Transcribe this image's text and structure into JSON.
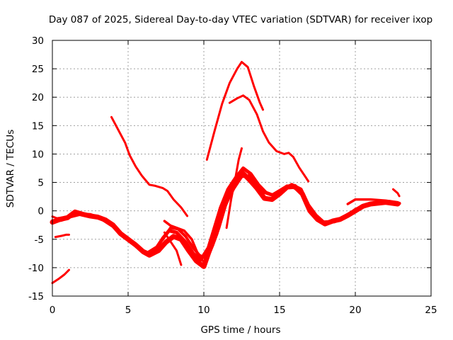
{
  "chart_data": {
    "type": "scatter",
    "title": "Day 087 of 2025, Sidereal Day-to-day VTEC variation (SDTVAR) for receiver ixop",
    "xlabel": "GPS time / hours",
    "ylabel": "SDTVAR / TECUs",
    "xlim": [
      0,
      25
    ],
    "ylim": [
      -15,
      30
    ],
    "xticks": [
      0,
      5,
      10,
      15,
      20,
      25
    ],
    "yticks": [
      -15,
      -10,
      -5,
      0,
      5,
      10,
      15,
      20,
      25,
      30
    ],
    "x_tick_labels": [
      "0",
      "5",
      "10",
      "15",
      "20",
      "25"
    ],
    "y_tick_labels": [
      "-15",
      "-10",
      "-5",
      "0",
      "5",
      "10",
      "15",
      "20",
      "25",
      "30"
    ],
    "grid": true,
    "color": "#ff0000",
    "series": [
      {
        "name": "arc-a",
        "points": [
          [
            0,
            -2
          ],
          [
            0.5,
            -1.5
          ],
          [
            1,
            -1.2
          ],
          [
            1.5,
            -0.2
          ],
          [
            2,
            -0.6
          ],
          [
            2.5,
            -0.9
          ],
          [
            3,
            -1.1
          ],
          [
            3.5,
            -1.6
          ],
          [
            4,
            -2.5
          ],
          [
            4.5,
            -4
          ],
          [
            5,
            -5
          ],
          [
            5.5,
            -6
          ],
          [
            6,
            -7.2
          ],
          [
            6.4,
            -7.8
          ],
          [
            7,
            -7
          ],
          [
            7.5,
            -5.5
          ],
          [
            8,
            -4.5
          ],
          [
            8.5,
            -5
          ],
          [
            9,
            -7
          ],
          [
            9.5,
            -8.8
          ],
          [
            10,
            -9.8
          ],
          [
            10.3,
            -7.5
          ],
          [
            10.8,
            -4
          ],
          [
            11.2,
            0
          ],
          [
            11.7,
            3
          ],
          [
            12,
            5
          ],
          [
            12.5,
            6.8
          ],
          [
            13,
            5.5
          ],
          [
            13.5,
            4
          ],
          [
            14,
            2.2
          ],
          [
            14.5,
            2
          ],
          [
            15,
            3
          ],
          [
            15.5,
            4.2
          ],
          [
            16,
            4.3
          ],
          [
            16.5,
            3
          ],
          [
            17,
            0
          ],
          [
            17.5,
            -1.5
          ],
          [
            18,
            -2.3
          ],
          [
            18.5,
            -1.8
          ],
          [
            19,
            -1.5
          ],
          [
            19.5,
            -0.8
          ],
          [
            20,
            0
          ],
          [
            20.5,
            0.8
          ],
          [
            21,
            1.2
          ],
          [
            22,
            1.5
          ],
          [
            22.8,
            1.2
          ]
        ],
        "width": 7
      },
      {
        "name": "arc-b",
        "points": [
          [
            0,
            -1.8
          ],
          [
            0.6,
            -1.6
          ],
          [
            1.2,
            -1
          ],
          [
            1.8,
            -0.6
          ],
          [
            2.5,
            -0.7
          ],
          [
            3.2,
            -1.3
          ],
          [
            4,
            -2.7
          ],
          [
            4.6,
            -4.3
          ],
          [
            5.2,
            -5.5
          ],
          [
            5.8,
            -6.8
          ],
          [
            6.3,
            -7.4
          ],
          [
            6.9,
            -6.4
          ],
          [
            7.3,
            -4.8
          ],
          [
            7.7,
            -3.5
          ],
          [
            8.2,
            -3.8
          ],
          [
            8.8,
            -5.5
          ],
          [
            9.3,
            -7.5
          ],
          [
            9.8,
            -8.6
          ],
          [
            10.3,
            -6.5
          ],
          [
            10.7,
            -3
          ],
          [
            11.1,
            0.5
          ],
          [
            11.6,
            3.8
          ],
          [
            12.1,
            5.8
          ],
          [
            12.6,
            7.5
          ],
          [
            13.1,
            6.5
          ],
          [
            13.6,
            4.6
          ],
          [
            14.1,
            3.2
          ],
          [
            14.7,
            2.6
          ],
          [
            15.3,
            3.8
          ],
          [
            15.8,
            4.6
          ],
          [
            16.4,
            3.8
          ],
          [
            16.9,
            1
          ],
          [
            17.4,
            -0.8
          ],
          [
            17.9,
            -2
          ],
          [
            18.6,
            -1.9
          ],
          [
            19.3,
            -1.2
          ],
          [
            20,
            0.2
          ],
          [
            20.7,
            1
          ],
          [
            21.5,
            1.4
          ],
          [
            22.3,
            1.6
          ],
          [
            22.9,
            1.3
          ]
        ],
        "width": 5
      },
      {
        "name": "arc-c",
        "points": [
          [
            7.3,
            -5
          ],
          [
            7.8,
            -3
          ],
          [
            8.3,
            -3.2
          ],
          [
            8.8,
            -4.5
          ],
          [
            9.3,
            -6.5
          ],
          [
            9.7,
            -7.8
          ],
          [
            10.2,
            -8.5
          ],
          [
            10.6,
            -6
          ],
          [
            11,
            -3
          ],
          [
            11.5,
            1.5
          ],
          [
            12,
            4
          ],
          [
            12.5,
            6
          ],
          [
            13,
            6.2
          ],
          [
            13.5,
            4.6
          ],
          [
            14,
            3.2
          ],
          [
            14.5,
            2.8
          ],
          [
            15,
            3.6
          ],
          [
            15.5,
            4.4
          ],
          [
            16,
            4
          ],
          [
            16.4,
            3.2
          ]
        ],
        "width": 4
      },
      {
        "name": "arc-d",
        "points": [
          [
            7.4,
            -1.8
          ],
          [
            7.8,
            -2.6
          ],
          [
            8.2,
            -3
          ],
          [
            8.7,
            -3.5
          ],
          [
            9.2,
            -5
          ],
          [
            9.7,
            -8.2
          ],
          [
            10.1,
            -9.2
          ]
        ],
        "width": 3.5
      },
      {
        "name": "arc-e",
        "points": [
          [
            7.4,
            -3.8
          ],
          [
            7.7,
            -5
          ],
          [
            8.2,
            -7
          ],
          [
            8.5,
            -9.5
          ]
        ],
        "width": 3
      },
      {
        "name": "arc-f",
        "points": [
          [
            11.5,
            -3
          ],
          [
            11.8,
            2
          ],
          [
            12.1,
            6
          ],
          [
            12.3,
            9
          ],
          [
            12.5,
            11
          ]
        ],
        "width": 3
      },
      {
        "name": "arc-g",
        "points": [
          [
            3.9,
            16.5
          ],
          [
            4.3,
            14.5
          ],
          [
            4.8,
            12
          ],
          [
            5.1,
            9.8
          ],
          [
            5.5,
            7.8
          ],
          [
            5.9,
            6.2
          ],
          [
            6.4,
            4.6
          ],
          [
            6.8,
            4.4
          ],
          [
            7.3,
            4
          ],
          [
            7.6,
            3.5
          ],
          [
            8,
            2
          ],
          [
            8.5,
            0.6
          ],
          [
            8.9,
            -0.9
          ]
        ],
        "width": 3
      },
      {
        "name": "arc-h",
        "points": [
          [
            10.2,
            9
          ],
          [
            10.7,
            14
          ],
          [
            11.2,
            18.8
          ],
          [
            11.7,
            22.5
          ],
          [
            12.2,
            25
          ],
          [
            12.5,
            26.2
          ],
          [
            12.9,
            25.3
          ],
          [
            13.3,
            22
          ],
          [
            13.7,
            19
          ],
          [
            13.9,
            17.8
          ]
        ],
        "width": 3
      },
      {
        "name": "arc-i",
        "points": [
          [
            11.7,
            19
          ],
          [
            12.2,
            19.8
          ],
          [
            12.6,
            20.3
          ],
          [
            13,
            19.5
          ],
          [
            13.5,
            17
          ],
          [
            13.9,
            14
          ],
          [
            14.3,
            12
          ],
          [
            14.8,
            10.5
          ],
          [
            15.3,
            10
          ],
          [
            15.6,
            10.2
          ],
          [
            15.9,
            9.5
          ],
          [
            16.3,
            7.6
          ],
          [
            16.7,
            6
          ],
          [
            16.9,
            5.2
          ]
        ],
        "width": 3
      },
      {
        "name": "arc-j",
        "points": [
          [
            0,
            -12.7
          ],
          [
            0.4,
            -12
          ],
          [
            0.8,
            -11.2
          ],
          [
            1.1,
            -10.4
          ]
        ],
        "width": 3
      },
      {
        "name": "arc-k",
        "points": [
          [
            0.2,
            -4.6
          ],
          [
            0.6,
            -4.4
          ],
          [
            0.9,
            -4.2
          ],
          [
            1.1,
            -4.2
          ]
        ],
        "width": 3
      },
      {
        "name": "arc-l",
        "points": [
          [
            0,
            -1
          ],
          [
            0.3,
            -1.3
          ],
          [
            0.6,
            -1.2
          ]
        ],
        "width": 3
      },
      {
        "name": "arc-m",
        "points": [
          [
            22.5,
            3.8
          ],
          [
            22.8,
            3.1
          ],
          [
            22.9,
            2.6
          ]
        ],
        "width": 3
      },
      {
        "name": "arc-n",
        "points": [
          [
            19.5,
            1.2
          ],
          [
            20,
            2
          ],
          [
            21,
            2
          ],
          [
            22,
            1.8
          ],
          [
            22.8,
            1.5
          ]
        ],
        "width": 3.5
      }
    ]
  }
}
